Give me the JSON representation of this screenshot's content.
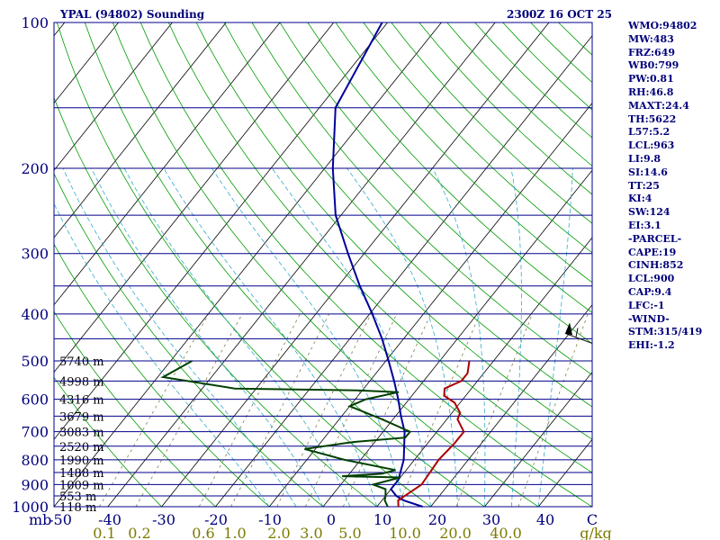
{
  "header": {
    "station": "YPAL (94802) Sounding",
    "time": "2300Z 16 OCT 25"
  },
  "indices": [
    "WMO:94802",
    "MW:483",
    "FRZ:649",
    "WB0:799",
    "PW:0.81",
    "RH:46.8",
    "MAXT:24.4",
    "TH:5622",
    "L57:5.2",
    "LCL:963",
    "LI:9.8",
    "SI:14.6",
    "TT:25",
    "KI:4",
    "SW:124",
    "EI:3.1",
    "-PARCEL-",
    "CAPE:19",
    "CINH:852",
    "LCL:900",
    "CAP:9.4",
    "LFC:-1",
    "-WIND-",
    "STM:315/419",
    "EHI:-1.2"
  ],
  "colors": {
    "isobar": "#00008b",
    "dry_adiabat": "#009c00",
    "isotherm": "#000000",
    "moist_adiabat": "#33aacc",
    "mixing_ratio": "#808050",
    "temperature": "#00009a",
    "dewpoint": "#004000",
    "dewpoint_upper": "#aa0000",
    "axis_text": "#00007a",
    "mixing_ratio_text": "#7a7a00"
  },
  "chart_data": {
    "type": "skew-t log-p sounding",
    "title": "YPAL (94802) Sounding",
    "y_axis": {
      "unit_label": "mb",
      "scale": "log pressure",
      "range_mb": [
        1000,
        100
      ],
      "tick_labels": [
        "100",
        "200",
        "300",
        "400",
        "500",
        "600",
        "700",
        "800",
        "900",
        "1000"
      ]
    },
    "x_axis": {
      "unit": "°C",
      "range": [
        -50,
        50
      ],
      "tick_labels": [
        "-50",
        "-40",
        "-30",
        "-20",
        "-10",
        "0",
        "10",
        "20",
        "30",
        "40",
        "C"
      ]
    },
    "mixing_ratio_axis": {
      "unit_label": "g/kg",
      "tick_labels": [
        "0.1",
        "0.2",
        "0.6",
        "1.0",
        "2.0",
        "3.0",
        "5.0",
        "10.0",
        "20.0",
        "40.0"
      ]
    },
    "height_labels": [
      {
        "p": 500,
        "label": "5740 m"
      },
      {
        "p": 550,
        "label": "4998 m"
      },
      {
        "p": 600,
        "label": "4316 m"
      },
      {
        "p": 650,
        "label": "3679 m"
      },
      {
        "p": 700,
        "label": "3083 m"
      },
      {
        "p": 750,
        "label": "2520 m"
      },
      {
        "p": 800,
        "label": "1990 m"
      },
      {
        "p": 850,
        "label": "1488 m"
      },
      {
        "p": 900,
        "label": "1009 m"
      },
      {
        "p": 950,
        "label": "553 m"
      },
      {
        "p": 1000,
        "label": "118 m"
      }
    ],
    "isobars_mb": [
      100,
      150,
      200,
      250,
      300,
      350,
      400,
      450,
      500,
      550,
      600,
      650,
      700,
      750,
      800,
      850,
      900,
      950,
      1000
    ],
    "temperature_profile": [
      {
        "p": 1000,
        "t": 18.5
      },
      {
        "p": 970,
        "t": 14
      },
      {
        "p": 950,
        "t": 12
      },
      {
        "p": 920,
        "t": 10
      },
      {
        "p": 880,
        "t": 10
      },
      {
        "p": 800,
        "t": 8
      },
      {
        "p": 700,
        "t": 4
      },
      {
        "p": 650,
        "t": 1
      },
      {
        "p": 600,
        "t": -2
      },
      {
        "p": 550,
        "t": -5.5
      },
      {
        "p": 500,
        "t": -9.5
      },
      {
        "p": 450,
        "t": -14
      },
      {
        "p": 400,
        "t": -19.5
      },
      {
        "p": 350,
        "t": -26
      },
      {
        "p": 300,
        "t": -33
      },
      {
        "p": 250,
        "t": -41
      },
      {
        "p": 200,
        "t": -48.5
      },
      {
        "p": 150,
        "t": -57
      },
      {
        "p": 100,
        "t": -61
      }
    ],
    "dewpoint_profile": [
      {
        "p": 1000,
        "td": 12
      },
      {
        "p": 970,
        "td": 10.5
      },
      {
        "p": 950,
        "td": 10
      },
      {
        "p": 920,
        "td": 9
      },
      {
        "p": 900,
        "td": 6
      },
      {
        "p": 870,
        "td": 10
      },
      {
        "p": 865,
        "td": -1
      },
      {
        "p": 855,
        "td": 6
      },
      {
        "p": 840,
        "td": 8
      },
      {
        "p": 800,
        "td": -3
      },
      {
        "p": 760,
        "td": -12
      },
      {
        "p": 735,
        "td": -4
      },
      {
        "p": 720,
        "td": 5
      },
      {
        "p": 700,
        "td": 5
      },
      {
        "p": 660,
        "td": -2
      },
      {
        "p": 620,
        "td": -10
      },
      {
        "p": 600,
        "td": -8
      },
      {
        "p": 580,
        "td": -3
      },
      {
        "p": 575,
        "td": -11
      },
      {
        "p": 570,
        "td": -34
      },
      {
        "p": 540,
        "td": -49
      },
      {
        "p": 500,
        "td": -46
      }
    ],
    "upper_moisture_profile": [
      {
        "p": 1000,
        "v": 14
      },
      {
        "p": 970,
        "v": 13
      },
      {
        "p": 900,
        "v": 15
      },
      {
        "p": 800,
        "v": 14.5
      },
      {
        "p": 740,
        "v": 15
      },
      {
        "p": 700,
        "v": 15
      },
      {
        "p": 660,
        "v": 12
      },
      {
        "p": 640,
        "v": 11.5
      },
      {
        "p": 610,
        "v": 9
      },
      {
        "p": 590,
        "v": 6
      },
      {
        "p": 570,
        "v": 5
      },
      {
        "p": 550,
        "v": 7
      },
      {
        "p": 530,
        "v": 7
      },
      {
        "p": 500,
        "v": 5.5
      }
    ],
    "wind_barb": {
      "p": 450,
      "direction_deg": 290
    }
  }
}
